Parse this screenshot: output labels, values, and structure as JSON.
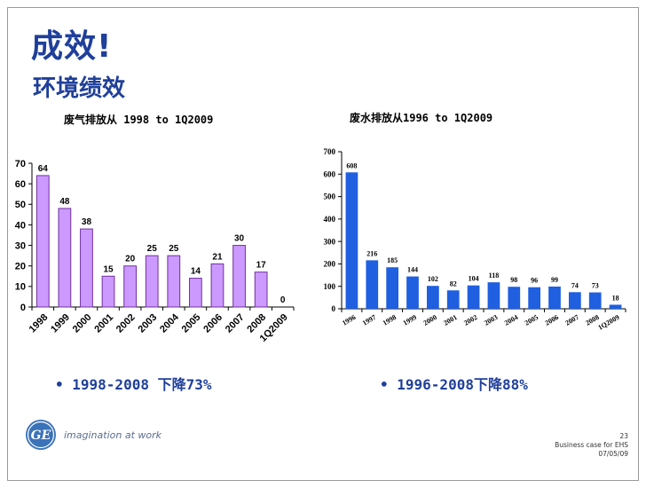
{
  "slide": {
    "title": "成效!",
    "subtitle": "环境绩效",
    "bullet1": "• 1998-2008 下降73%",
    "bullet2": "• 1996-2008下降88%",
    "logo_text": "GE",
    "tagline": "imagination at work",
    "footer": {
      "page": "23",
      "line2": "Business case for EHS",
      "date": "07/05/09"
    }
  },
  "chart_data": [
    {
      "type": "bar",
      "title": "废气排放从 1998 to 1Q2009",
      "categories": [
        "1998",
        "1999",
        "2000",
        "2001",
        "2002",
        "2003",
        "2004",
        "2005",
        "2006",
        "2007",
        "2008",
        "1Q2009"
      ],
      "values": [
        64,
        48,
        38,
        15,
        20,
        25,
        25,
        14,
        21,
        30,
        17,
        0
      ],
      "ylim": [
        0,
        70
      ],
      "yticks": [
        0,
        10,
        20,
        30,
        40,
        50,
        60,
        70
      ],
      "bar_color": "#cc99ff",
      "bar_stroke": "#7030a0",
      "grid": false,
      "legend": "none"
    },
    {
      "type": "bar",
      "title": "废水排放从1996 to 1Q2009",
      "categories": [
        "1996",
        "1997",
        "1998",
        "1999",
        "2000",
        "2001",
        "2002",
        "2003",
        "2004",
        "2005",
        "2006",
        "2007",
        "2008",
        "1Q2009"
      ],
      "values": [
        608,
        216,
        185,
        144,
        102,
        82,
        104,
        118,
        98,
        96,
        99,
        74,
        73,
        18
      ],
      "ylim": [
        0,
        700
      ],
      "yticks": [
        0,
        100,
        200,
        300,
        400,
        500,
        600,
        700
      ],
      "bar_color": "#1f5fe0",
      "grid": false,
      "legend": "none"
    }
  ]
}
